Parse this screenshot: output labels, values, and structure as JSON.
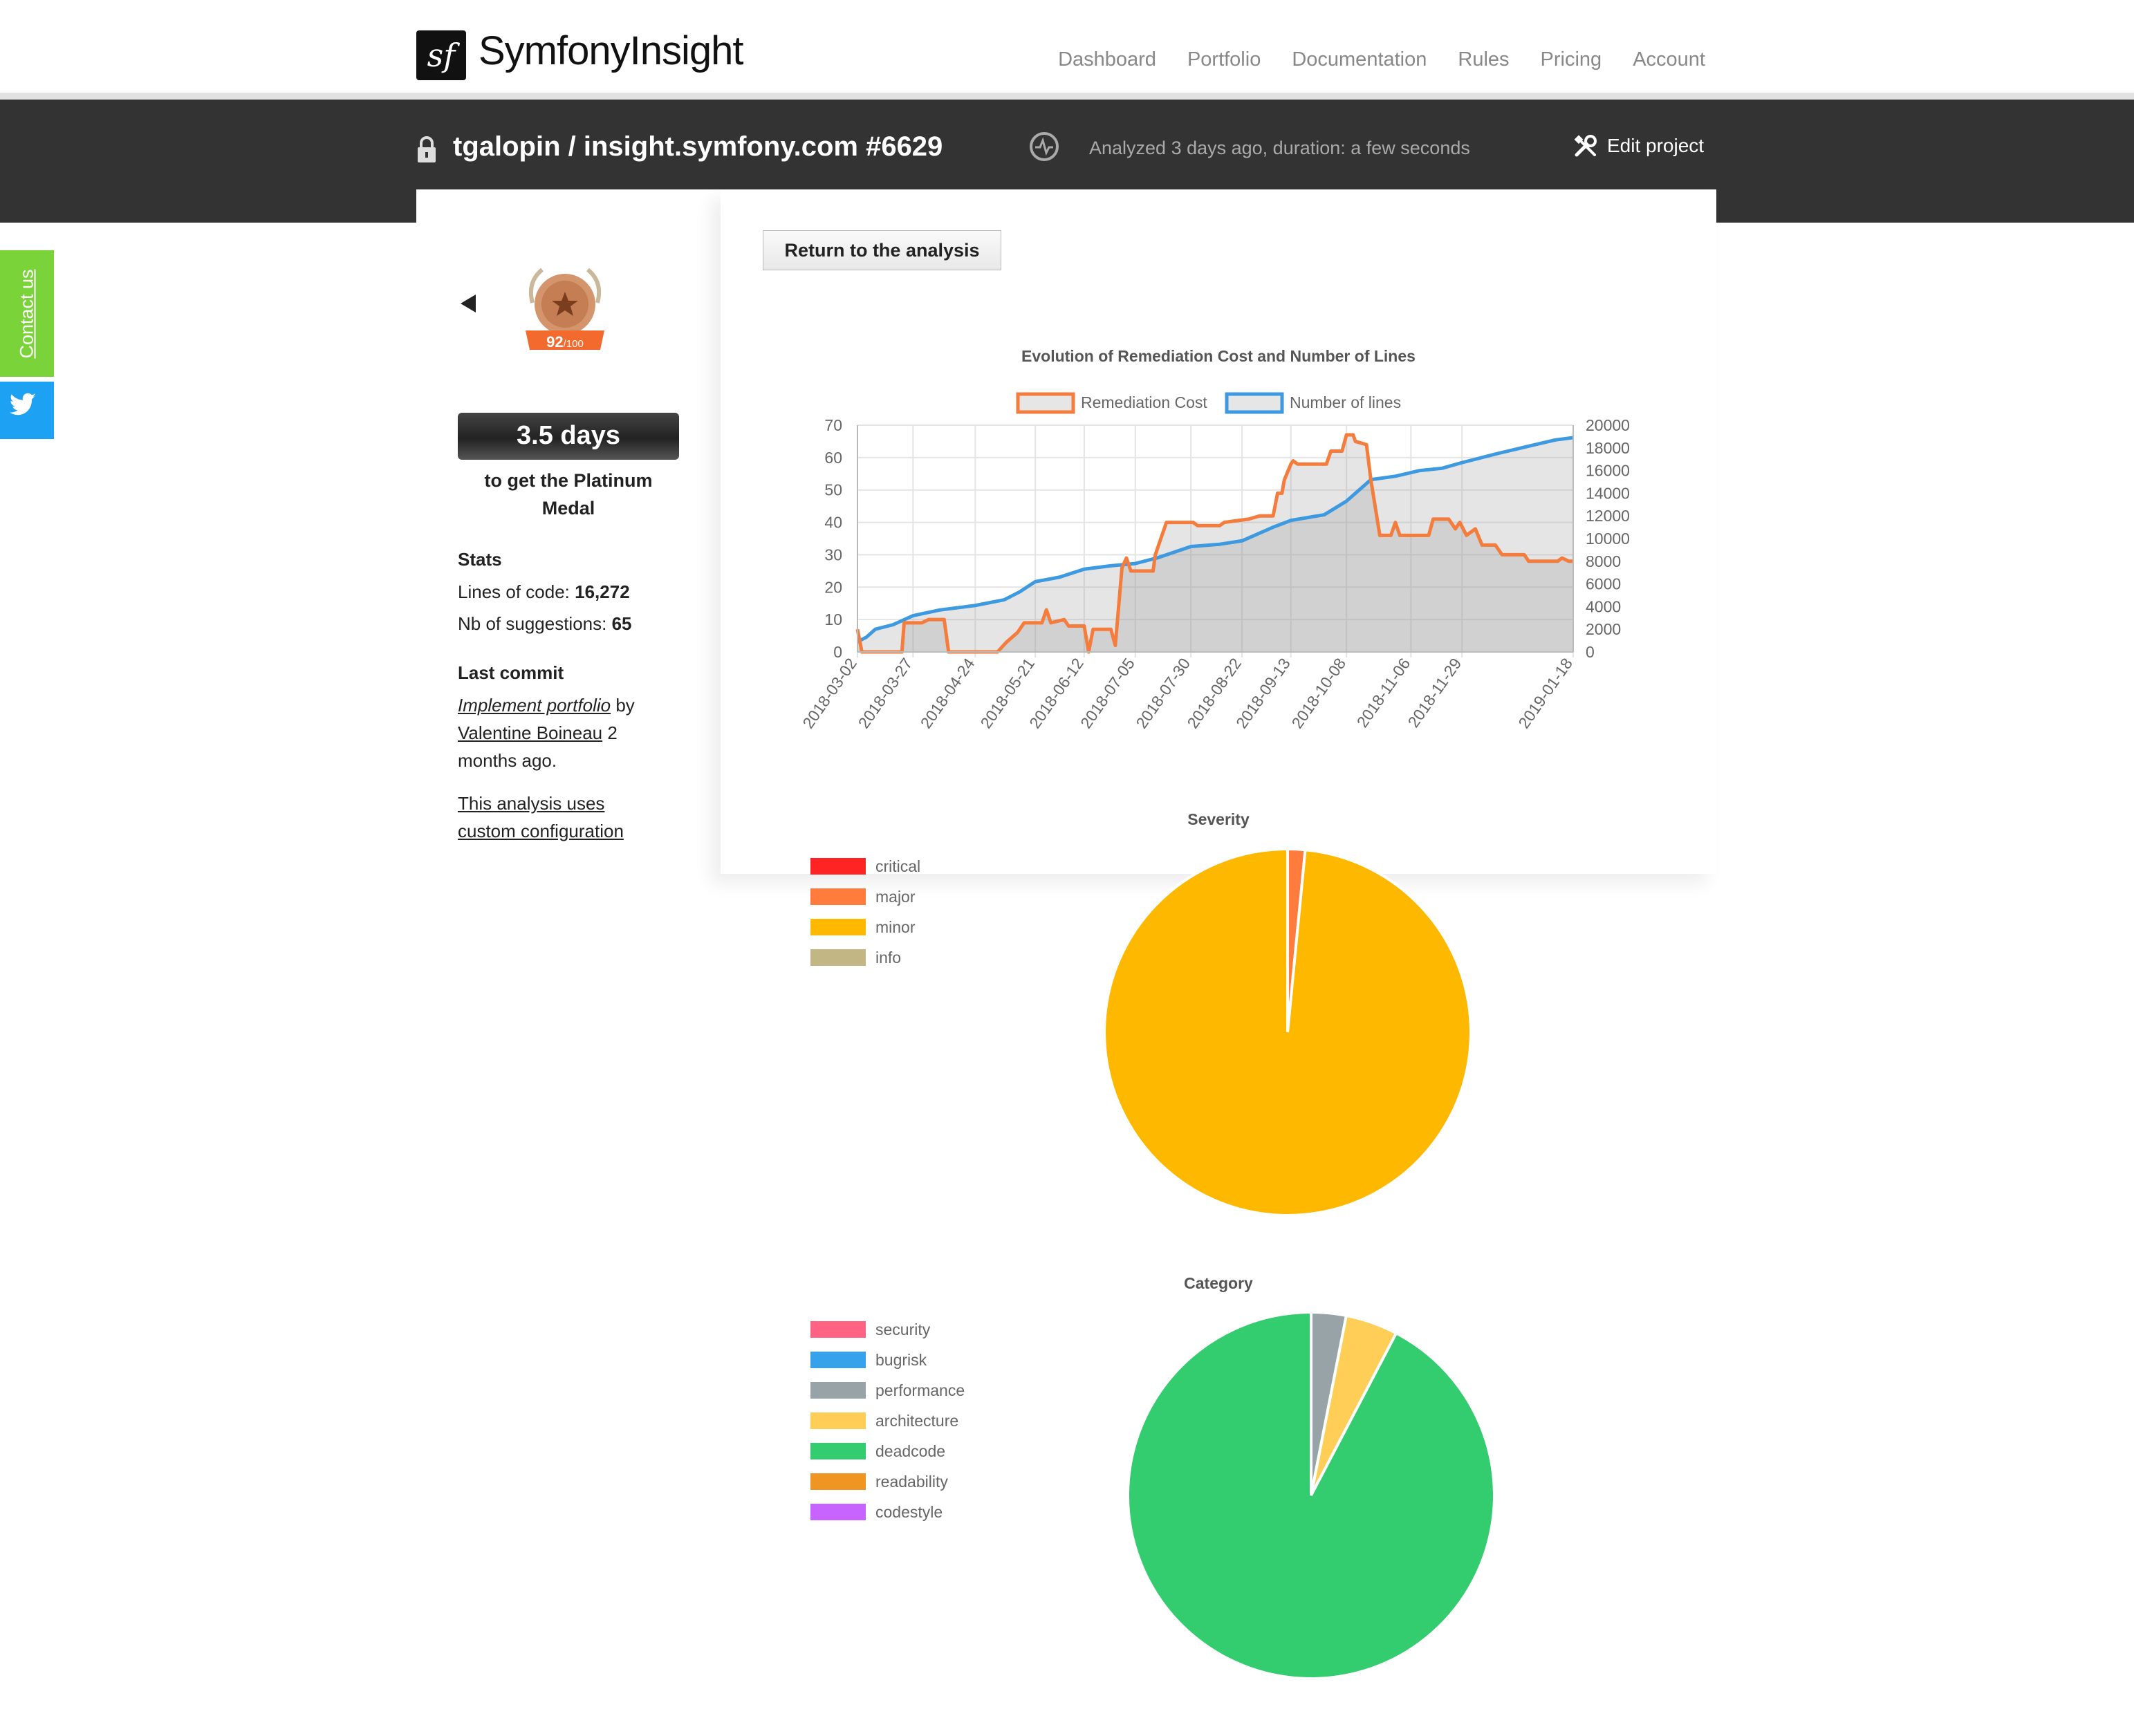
{
  "header": {
    "logo_glyph": "sf",
    "logo_text": "SymfonyInsight",
    "nav": [
      "Dashboard",
      "Portfolio",
      "Documentation",
      "Rules",
      "Pricing",
      "Account"
    ]
  },
  "project_bar": {
    "title": "tgalopin / insight.symfony.com #6629",
    "analyzed": "Analyzed 3 days ago, duration: a few seconds",
    "edit_label": "Edit project"
  },
  "side_tabs": {
    "contact": "Contact us",
    "twitter_icon": "twitter-icon"
  },
  "sidebar": {
    "medal": {
      "score": "92",
      "max": "/100",
      "level": "bronze"
    },
    "days": "3.5 days",
    "platinum": "to get the Platinum Medal",
    "stats_title": "Stats",
    "lines_label": "Lines of code:",
    "lines_value": "16,272",
    "suggestions_label": "Nb of suggestions:",
    "suggestions_value": "65",
    "last_commit_title": "Last commit",
    "commit_message": "Implement portfolio",
    "commit_by": "by",
    "commit_author": "Valentine Boineau",
    "commit_ago": "2 months ago.",
    "custom_config": "This analysis uses custom configuration"
  },
  "main": {
    "return_label": "Return to the analysis"
  },
  "chart_data": [
    {
      "type": "line",
      "title": "Evolution of Remediation Cost and Number of Lines",
      "x_ticks": [
        "2018-03-02",
        "2018-03-27",
        "2018-04-24",
        "2018-05-21",
        "2018-06-12",
        "2018-07-05",
        "2018-07-30",
        "2018-08-22",
        "2018-09-13",
        "2018-10-08",
        "2018-11-06",
        "2018-11-29",
        "2019-01-18"
      ],
      "x_range": [
        "2018-03-02",
        "2019-01-18"
      ],
      "y_left": {
        "ticks": [
          0,
          10,
          20,
          30,
          40,
          50,
          60,
          70
        ],
        "range": [
          0,
          70
        ]
      },
      "y_right": {
        "ticks": [
          0,
          2000,
          4000,
          6000,
          8000,
          10000,
          12000,
          14000,
          16000,
          18000,
          20000
        ],
        "range": [
          0,
          20000
        ]
      },
      "legend_position": "top",
      "grid": true,
      "series": [
        {
          "name": "Remediation Cost",
          "axis": "left",
          "color": "#f47c3c",
          "points": [
            [
              "2018-03-02",
              7
            ],
            [
              "2018-03-04",
              0
            ],
            [
              "2018-03-22",
              0
            ],
            [
              "2018-03-23",
              9
            ],
            [
              "2018-03-31",
              9
            ],
            [
              "2018-04-03",
              10
            ],
            [
              "2018-04-10",
              10
            ],
            [
              "2018-04-12",
              0
            ],
            [
              "2018-05-04",
              0
            ],
            [
              "2018-05-08",
              3
            ],
            [
              "2018-05-13",
              6
            ],
            [
              "2018-05-16",
              9
            ],
            [
              "2018-05-24",
              9
            ],
            [
              "2018-05-26",
              13
            ],
            [
              "2018-05-28",
              9
            ],
            [
              "2018-06-03",
              10
            ],
            [
              "2018-06-05",
              8
            ],
            [
              "2018-06-12",
              8
            ],
            [
              "2018-06-14",
              0
            ],
            [
              "2018-06-16",
              7
            ],
            [
              "2018-06-24",
              7
            ],
            [
              "2018-06-26",
              2
            ],
            [
              "2018-06-29",
              26
            ],
            [
              "2018-07-01",
              29
            ],
            [
              "2018-07-03",
              25
            ],
            [
              "2018-07-13",
              25
            ],
            [
              "2018-07-14",
              30
            ],
            [
              "2018-07-19",
              40
            ],
            [
              "2018-07-31",
              40
            ],
            [
              "2018-08-02",
              39
            ],
            [
              "2018-08-12",
              39
            ],
            [
              "2018-08-14",
              40
            ],
            [
              "2018-08-25",
              41
            ],
            [
              "2018-08-30",
              42
            ],
            [
              "2018-09-05",
              42
            ],
            [
              "2018-09-07",
              49
            ],
            [
              "2018-09-09",
              49
            ],
            [
              "2018-09-10",
              53
            ],
            [
              "2018-09-13",
              58
            ],
            [
              "2018-09-14",
              59
            ],
            [
              "2018-09-16",
              58
            ],
            [
              "2018-09-29",
              58
            ],
            [
              "2018-10-01",
              62
            ],
            [
              "2018-10-06",
              62
            ],
            [
              "2018-10-08",
              67
            ],
            [
              "2018-10-11",
              67
            ],
            [
              "2018-10-12",
              65
            ],
            [
              "2018-10-17",
              64
            ],
            [
              "2018-10-19",
              53
            ],
            [
              "2018-10-23",
              36
            ],
            [
              "2018-10-28",
              36
            ],
            [
              "2018-10-30",
              40
            ],
            [
              "2018-11-01",
              36
            ],
            [
              "2018-11-14",
              36
            ],
            [
              "2018-11-16",
              41
            ],
            [
              "2018-11-23",
              41
            ],
            [
              "2018-11-26",
              38
            ],
            [
              "2018-11-28",
              40
            ],
            [
              "2018-12-01",
              36
            ],
            [
              "2018-12-05",
              38
            ],
            [
              "2018-12-08",
              33
            ],
            [
              "2018-12-14",
              33
            ],
            [
              "2018-12-17",
              30
            ],
            [
              "2018-12-27",
              30
            ],
            [
              "2018-12-29",
              28
            ],
            [
              "2019-01-11",
              28
            ],
            [
              "2019-01-13",
              29
            ],
            [
              "2019-01-16",
              28
            ],
            [
              "2019-01-18",
              28
            ]
          ]
        },
        {
          "name": "Number of lines",
          "axis": "right",
          "color": "#3d9ae0",
          "points": [
            [
              "2018-03-02",
              900
            ],
            [
              "2018-03-06",
              1300
            ],
            [
              "2018-03-10",
              2000
            ],
            [
              "2018-03-18",
              2400
            ],
            [
              "2018-03-27",
              3200
            ],
            [
              "2018-04-08",
              3700
            ],
            [
              "2018-04-24",
              4100
            ],
            [
              "2018-05-07",
              4600
            ],
            [
              "2018-05-14",
              5300
            ],
            [
              "2018-05-21",
              6200
            ],
            [
              "2018-06-01",
              6600
            ],
            [
              "2018-06-12",
              7300
            ],
            [
              "2018-06-24",
              7600
            ],
            [
              "2018-07-05",
              7800
            ],
            [
              "2018-07-15",
              8300
            ],
            [
              "2018-07-30",
              9300
            ],
            [
              "2018-08-12",
              9500
            ],
            [
              "2018-08-22",
              9800
            ],
            [
              "2018-09-05",
              11000
            ],
            [
              "2018-09-13",
              11600
            ],
            [
              "2018-09-28",
              12100
            ],
            [
              "2018-10-08",
              13300
            ],
            [
              "2018-10-19",
              15200
            ],
            [
              "2018-10-30",
              15500
            ],
            [
              "2018-11-10",
              16000
            ],
            [
              "2018-11-20",
              16200
            ],
            [
              "2018-11-29",
              16700
            ],
            [
              "2018-12-15",
              17500
            ],
            [
              "2018-12-30",
              18200
            ],
            [
              "2019-01-10",
              18700
            ],
            [
              "2019-01-18",
              18900
            ]
          ]
        }
      ]
    },
    {
      "type": "pie",
      "title": "Severity",
      "legend_position": "left",
      "labels": [
        "critical",
        "major",
        "minor",
        "info"
      ],
      "colors": [
        "#ff2424",
        "#ff7c3c",
        "#ffb800",
        "#c2b784"
      ],
      "values": [
        0,
        1,
        64,
        0
      ]
    },
    {
      "type": "pie",
      "title": "Category",
      "legend_position": "left",
      "labels": [
        "security",
        "bugrisk",
        "performance",
        "architecture",
        "deadcode",
        "readability",
        "codestyle"
      ],
      "colors": [
        "#ff6384",
        "#36a2eb",
        "#97a3a6",
        "#ffce56",
        "#33cc6f",
        "#ef9521",
        "#c763ff"
      ],
      "values": [
        0,
        0,
        2,
        3,
        60,
        0,
        0
      ]
    }
  ]
}
